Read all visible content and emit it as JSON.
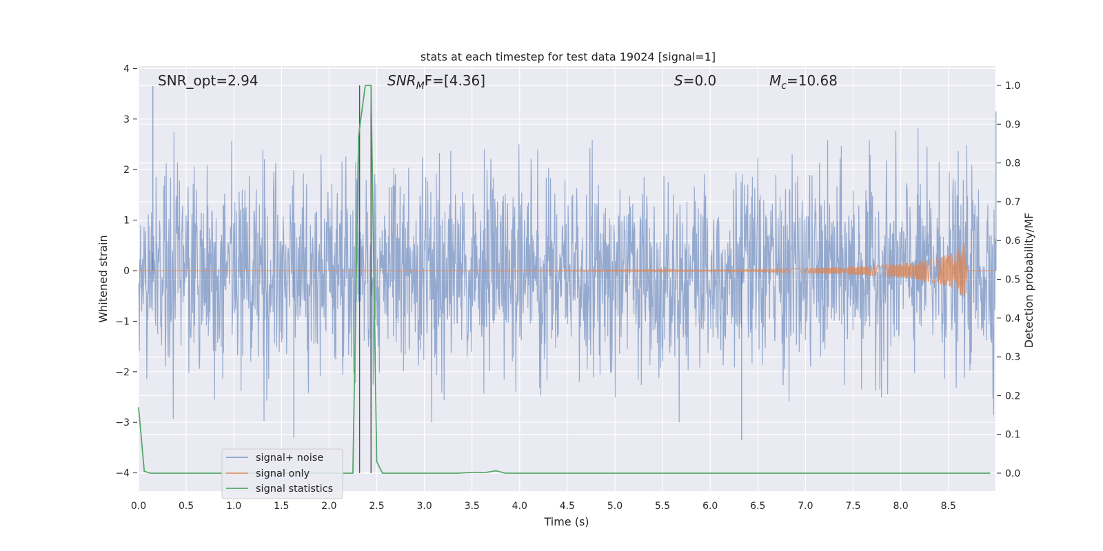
{
  "chart_data": {
    "type": "line",
    "title": "stats at each timestep for test data 19024 [signal=1]",
    "xlabel": "Time (s)",
    "ylabel": "Whitened strain",
    "y2label": "Detection probability/MF",
    "xlim": [
      0.0,
      9.0
    ],
    "ylim": [
      -4.4,
      4.05
    ],
    "y2lim": [
      -0.047,
      1.04
    ],
    "xticks": [
      "0.0",
      "0.5",
      "1.0",
      "1.5",
      "2.0",
      "2.5",
      "3.0",
      "3.5",
      "4.0",
      "4.5",
      "5.0",
      "5.5",
      "6.0",
      "6.5",
      "7.0",
      "7.5",
      "8.0",
      "8.5"
    ],
    "yticks": [
      "-4",
      "-3",
      "-2",
      "-1",
      "0",
      "1",
      "2",
      "3",
      "4"
    ],
    "y2ticks": [
      "0.0",
      "0.1",
      "0.2",
      "0.3",
      "0.4",
      "0.5",
      "0.6",
      "0.7",
      "0.8",
      "0.9",
      "1.0"
    ],
    "grid": true,
    "legend_position": "lower-left",
    "annotations": {
      "snr_opt": "SNR_opt=2.94",
      "snr_mf_main": "SNR",
      "snr_mf_sub": "M",
      "snr_mf_rest": "F=[4.36]",
      "s_main": "S",
      "s_rest": "=0.0",
      "mc_main": "M",
      "mc_sub": "c",
      "mc_rest": "=10.68"
    },
    "vertical_markers_x": [
      2.32,
      2.44
    ],
    "series": [
      {
        "name": "signal+ noise",
        "color": "#4c72b0",
        "description_values": "whitened strain noise, roughly Gaussian, amplitude mostly within ±2.5, peaks near 3.6 (t≈0.15) and -3.35 (t≈6.33)",
        "notable_points": [
          [
            0.15,
            3.65
          ],
          [
            1.63,
            -3.3
          ],
          [
            6.33,
            -3.35
          ],
          [
            9.0,
            3.15
          ]
        ]
      },
      {
        "name": "signal only",
        "color": "#dd8452",
        "description_values": "chirp waveform, near zero until ~6.5 s, growing amplitude up to ~±0.55 at t≈8.67 then drops to 0",
        "envelope": [
          [
            0.0,
            0.0
          ],
          [
            6.5,
            0.02
          ],
          [
            7.0,
            0.05
          ],
          [
            7.5,
            0.08
          ],
          [
            8.0,
            0.14
          ],
          [
            8.3,
            0.22
          ],
          [
            8.5,
            0.32
          ],
          [
            8.6,
            0.42
          ],
          [
            8.67,
            0.55
          ],
          [
            8.7,
            0.0
          ],
          [
            9.0,
            0.0
          ]
        ]
      },
      {
        "name": "signal statistics",
        "color": "#55a868",
        "axis": "right",
        "x": [
          0.0,
          0.06,
          0.12,
          0.5,
          1.0,
          1.5,
          2.0,
          2.25,
          2.31,
          2.38,
          2.44,
          2.5,
          2.56,
          3.0,
          3.35,
          3.5,
          3.65,
          3.75,
          3.85,
          4.0,
          5.0,
          6.0,
          7.0,
          8.0,
          8.94
        ],
        "y": [
          0.17,
          0.005,
          0.0,
          0.0,
          0.0,
          0.0,
          0.0,
          0.0,
          0.87,
          1.0,
          1.0,
          0.03,
          0.0,
          0.0,
          0.0,
          0.002,
          0.002,
          0.006,
          0.0,
          0.0,
          0.0,
          0.0,
          0.0,
          0.0,
          0.0
        ]
      }
    ]
  }
}
